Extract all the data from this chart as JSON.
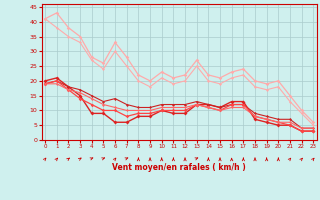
{
  "x": [
    0,
    1,
    2,
    3,
    4,
    5,
    6,
    7,
    8,
    9,
    10,
    11,
    12,
    13,
    14,
    15,
    16,
    17,
    18,
    19,
    20,
    21,
    22,
    23
  ],
  "series": [
    {
      "color": "#ffaaaa",
      "linewidth": 0.9,
      "markersize": 1.8,
      "y": [
        41,
        43,
        38,
        35,
        28,
        26,
        33,
        28,
        22,
        20,
        23,
        21,
        22,
        27,
        22,
        21,
        23,
        24,
        20,
        19,
        20,
        15,
        10,
        6
      ]
    },
    {
      "color": "#ffaaaa",
      "linewidth": 0.8,
      "markersize": 1.5,
      "y": [
        41,
        38,
        35,
        33,
        27,
        24,
        30,
        25,
        20,
        18,
        21,
        19,
        20,
        25,
        20,
        19,
        21,
        22,
        18,
        17,
        18,
        13,
        9,
        5
      ]
    },
    {
      "color": "#dd2222",
      "linewidth": 1.0,
      "markersize": 2.0,
      "y": [
        20,
        21,
        18,
        15,
        9,
        9,
        6,
        6,
        8,
        8,
        10,
        9,
        9,
        12,
        12,
        11,
        13,
        13,
        7,
        6,
        5,
        5,
        3,
        3
      ]
    },
    {
      "color": "#cc2222",
      "linewidth": 0.8,
      "markersize": 1.5,
      "y": [
        19,
        20,
        18,
        17,
        15,
        13,
        14,
        12,
        11,
        11,
        12,
        12,
        12,
        13,
        12,
        11,
        12,
        12,
        9,
        8,
        7,
        7,
        4,
        4
      ]
    },
    {
      "color": "#ff4444",
      "linewidth": 0.9,
      "markersize": 1.8,
      "y": [
        19,
        20,
        17,
        14,
        12,
        10,
        10,
        8,
        9,
        9,
        10,
        10,
        10,
        12,
        11,
        10,
        12,
        12,
        8,
        7,
        6,
        5,
        3,
        3
      ]
    },
    {
      "color": "#ff6666",
      "linewidth": 0.8,
      "markersize": 1.5,
      "y": [
        19,
        19,
        17,
        16,
        14,
        12,
        11,
        10,
        10,
        10,
        11,
        11,
        11,
        12,
        11,
        10,
        11,
        11,
        8,
        7,
        6,
        6,
        4,
        4
      ]
    }
  ],
  "xlim": [
    0,
    23
  ],
  "ylim": [
    0,
    46
  ],
  "yticks": [
    0,
    5,
    10,
    15,
    20,
    25,
    30,
    35,
    40,
    45
  ],
  "xticks": [
    0,
    1,
    2,
    3,
    4,
    5,
    6,
    7,
    8,
    9,
    10,
    11,
    12,
    13,
    14,
    15,
    16,
    17,
    18,
    19,
    20,
    21,
    22,
    23
  ],
  "xlabel": "Vent moyen/en rafales ( km/h )",
  "background_color": "#cff0ee",
  "grid_color": "#aacccc",
  "xlabel_color": "#cc0000",
  "tick_color": "#cc0000",
  "arrow_color": "#cc0000",
  "spine_color": "#cc0000",
  "arrows": [
    135,
    135,
    120,
    110,
    90,
    90,
    45,
    90,
    0,
    0,
    0,
    0,
    0,
    90,
    0,
    0,
    0,
    0,
    0,
    0,
    0,
    135,
    135,
    135
  ]
}
